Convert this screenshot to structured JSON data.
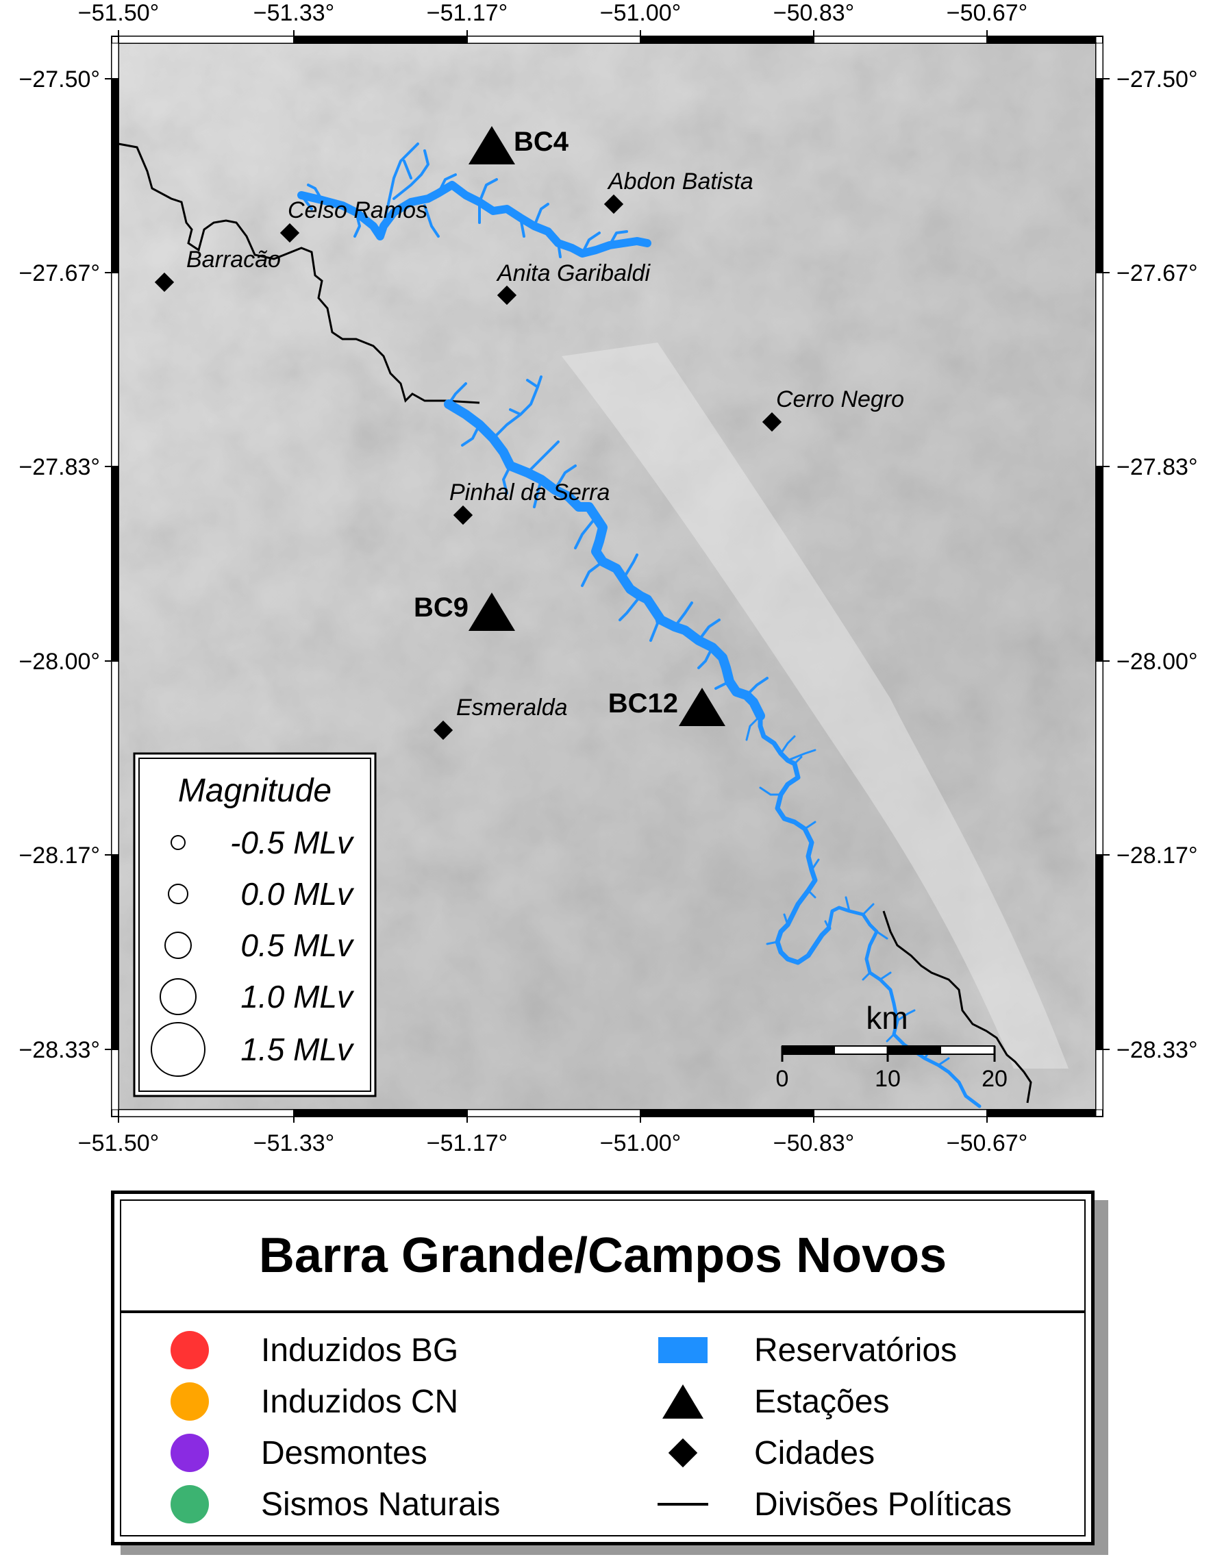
{
  "map": {
    "lon_ticks": [
      "−51.50°",
      "−51.33°",
      "−51.17°",
      "−51.00°",
      "−50.83°",
      "−50.67°"
    ],
    "lat_ticks": [
      "−27.50°",
      "−27.67°",
      "−27.83°",
      "−28.00°",
      "−28.17°",
      "−28.33°"
    ],
    "colors": {
      "reservoir": "#1e90ff",
      "terrain_light": "#e2e2e2",
      "terrain_dark": "#bdbdbd"
    },
    "cities": [
      {
        "name": "Abdon Batista"
      },
      {
        "name": "Celso Ramos"
      },
      {
        "name": "Barracão"
      },
      {
        "name": "Anita Garibaldi"
      },
      {
        "name": "Cerro Negro"
      },
      {
        "name": "Pinhal da Serra"
      },
      {
        "name": "Esmeralda"
      }
    ],
    "stations": [
      {
        "name": "BC4"
      },
      {
        "name": "BC9"
      },
      {
        "name": "BC12"
      }
    ]
  },
  "magnitude_legend": {
    "title": "Magnitude",
    "items": [
      {
        "label": "-0.5 MLv"
      },
      {
        "label": "0.0 MLv"
      },
      {
        "label": "0.5 MLv"
      },
      {
        "label": "1.0 MLv"
      },
      {
        "label": "1.5 MLv"
      }
    ]
  },
  "scale_bar": {
    "unit": "km",
    "ticks": [
      "0",
      "10",
      "20"
    ]
  },
  "legend": {
    "title": "Barra Grande/Campos Novos",
    "items": [
      {
        "label": "Induzidos BG",
        "symbol": "circle",
        "color": "#ff3333"
      },
      {
        "label": "Induzidos CN",
        "symbol": "circle",
        "color": "#ffa500"
      },
      {
        "label": "Desmontes",
        "symbol": "circle",
        "color": "#8a2be2"
      },
      {
        "label": "Sismos Naturais",
        "symbol": "circle",
        "color": "#3cb371"
      },
      {
        "label": "Reservatórios",
        "symbol": "rectangle",
        "color": "#1e90ff"
      },
      {
        "label": "Estações",
        "symbol": "triangle",
        "color": "#000000"
      },
      {
        "label": "Cidades",
        "symbol": "diamond",
        "color": "#000000"
      },
      {
        "label": "Divisões Políticas",
        "symbol": "line",
        "color": "#000000"
      }
    ]
  }
}
